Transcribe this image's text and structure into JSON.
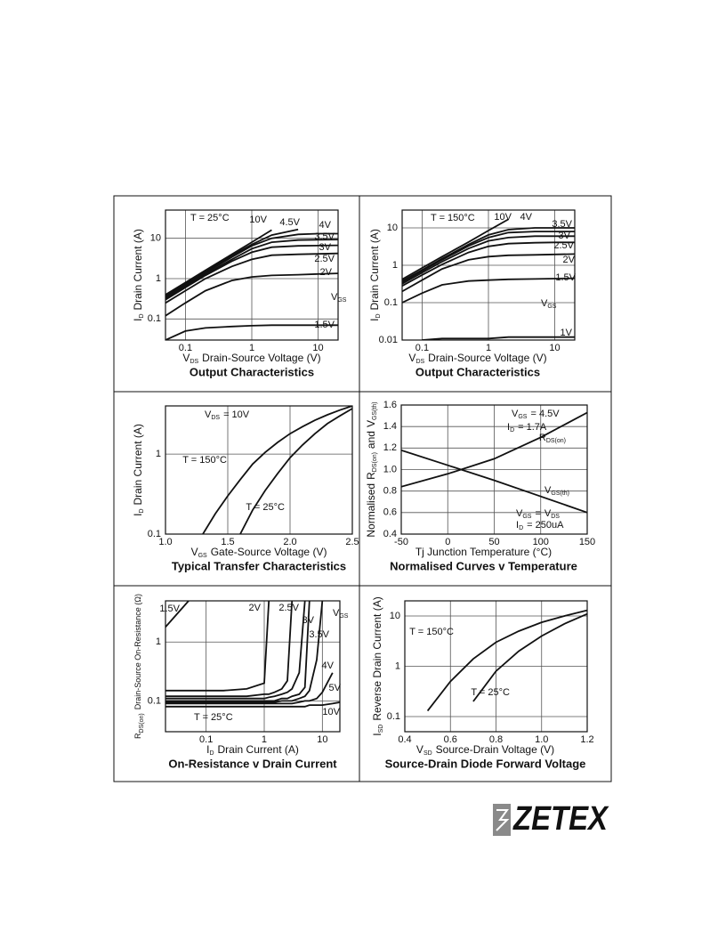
{
  "chart_data": [
    {
      "type": "line",
      "title": "Output Characteristics",
      "xlabel": {
        "symbol": "V",
        "subscript": "DS",
        "text": "Drain-Source Voltage (V)"
      },
      "ylabel": {
        "symbol": "I",
        "subscript": "D",
        "text": "Drain Current (A)"
      },
      "xscale": "log",
      "yscale": "log",
      "xlim": [
        0.05,
        20
      ],
      "ylim": [
        0.03,
        50
      ],
      "xticks": [
        0.1,
        1,
        10
      ],
      "yticks": [
        0.1,
        1,
        10
      ],
      "grid": true,
      "color": "#111111",
      "x": [
        0.05,
        0.1,
        0.2,
        0.5,
        1,
        2,
        5,
        10,
        20
      ],
      "annotations": [
        "T = 25°C",
        {
          "symbol": "V",
          "subscript": "GS"
        }
      ],
      "series": [
        {
          "name": "10V",
          "values": [
            0.4,
            0.8,
            1.6,
            4,
            8,
            16,
            null,
            null,
            null
          ]
        },
        {
          "name": "4.5V",
          "values": [
            0.38,
            0.75,
            1.5,
            3.7,
            7,
            12,
            16.5,
            null,
            null
          ]
        },
        {
          "name": "4V",
          "values": [
            0.35,
            0.7,
            1.4,
            3.4,
            6.5,
            10,
            12.5,
            13,
            13
          ]
        },
        {
          "name": "3.5V",
          "values": [
            0.32,
            0.65,
            1.3,
            3,
            5.5,
            8,
            9,
            9.2,
            9.3
          ]
        },
        {
          "name": "3V",
          "values": [
            0.3,
            0.6,
            1.2,
            2.7,
            4.5,
            6,
            6.5,
            6.6,
            6.7
          ]
        },
        {
          "name": "2.5V",
          "values": [
            0.25,
            0.5,
            1,
            2,
            3,
            3.8,
            4,
            4.1,
            4.2
          ]
        },
        {
          "name": "2V",
          "values": [
            0.12,
            0.25,
            0.5,
            0.9,
            1.1,
            1.2,
            1.25,
            1.3,
            1.35
          ]
        },
        {
          "name": "1.5V",
          "values": [
            0.03,
            0.05,
            0.06,
            0.065,
            0.068,
            0.07,
            0.07,
            0.07,
            0.07
          ]
        }
      ]
    },
    {
      "type": "line",
      "title": "Output Characteristics",
      "xlabel": {
        "symbol": "V",
        "subscript": "DS",
        "text": "Drain-Source Voltage (V)"
      },
      "ylabel": {
        "symbol": "I",
        "subscript": "D",
        "text": "Drain Current (A)"
      },
      "xscale": "log",
      "yscale": "log",
      "xlim": [
        0.05,
        20
      ],
      "ylim": [
        0.01,
        30
      ],
      "xticks": [
        0.1,
        1,
        10
      ],
      "yticks": [
        0.01,
        0.1,
        1,
        10
      ],
      "grid": true,
      "color": "#111111",
      "x": [
        0.05,
        0.1,
        0.2,
        0.5,
        1,
        2,
        5,
        10,
        20
      ],
      "annotations": [
        "T = 150°C",
        {
          "symbol": "V",
          "subscript": "GS"
        }
      ],
      "series": [
        {
          "name": "10V",
          "values": [
            0.42,
            0.85,
            1.7,
            4.2,
            8.5,
            17,
            null,
            null,
            null
          ]
        },
        {
          "name": "4V",
          "values": [
            0.38,
            0.75,
            1.5,
            3.6,
            6.5,
            9,
            10,
            10,
            10
          ]
        },
        {
          "name": "3.5V",
          "values": [
            0.35,
            0.7,
            1.4,
            3.3,
            5.5,
            7.5,
            8,
            8,
            8
          ]
        },
        {
          "name": "3V",
          "values": [
            0.32,
            0.63,
            1.25,
            2.8,
            4.5,
            5.5,
            6,
            6,
            6
          ]
        },
        {
          "name": "2.5V",
          "values": [
            0.28,
            0.55,
            1.05,
            2.2,
            3.2,
            3.8,
            4,
            4.1,
            4.1
          ]
        },
        {
          "name": "2V",
          "values": [
            0.2,
            0.4,
            0.8,
            1.4,
            1.7,
            1.85,
            1.9,
            1.95,
            2
          ]
        },
        {
          "name": "1.5V",
          "values": [
            0.1,
            0.18,
            0.3,
            0.38,
            0.4,
            0.42,
            0.43,
            0.44,
            0.45
          ]
        },
        {
          "name": "1V",
          "values": [
            null,
            0.01,
            0.011,
            0.011,
            0.011,
            0.012,
            0.012,
            0.012,
            0.012
          ]
        }
      ]
    },
    {
      "type": "line",
      "title": "Typical Transfer Characteristics",
      "xlabel": {
        "symbol": "V",
        "subscript": "GS",
        "text": "Gate-Source Voltage (V)"
      },
      "ylabel": {
        "symbol": "I",
        "subscript": "D",
        "text": "Drain Current (A)"
      },
      "xscale": "linear",
      "yscale": "log",
      "xlim": [
        1,
        2.5
      ],
      "ylim": [
        0.1,
        4
      ],
      "xticks": [
        {
          "value": 1,
          "label": "1.0"
        },
        1.5,
        {
          "value": 2,
          "label": "2.0"
        },
        2.5
      ],
      "yticks": [
        0.1,
        1
      ],
      "grid": true,
      "color": "#111111",
      "x": [
        1.3,
        1.4,
        1.5,
        1.6,
        1.7,
        1.8,
        1.9,
        2.0,
        2.1,
        2.2,
        2.3,
        2.4,
        2.5
      ],
      "annotations": [
        {
          "symbol": "V",
          "subscript": "DS",
          "text": "= 10V"
        }
      ],
      "series": [
        {
          "name": "T = 150°C",
          "values": [
            0.1,
            0.18,
            0.3,
            0.48,
            0.75,
            1.05,
            1.4,
            1.8,
            2.2,
            2.65,
            3.1,
            3.55,
            4
          ]
        },
        {
          "name": "T = 25°C",
          "values": [
            null,
            null,
            null,
            0.1,
            0.2,
            0.35,
            0.57,
            0.9,
            1.3,
            1.8,
            2.4,
            3,
            3.7
          ]
        }
      ]
    },
    {
      "type": "line",
      "title": "Normalised Curves v Temperature",
      "xlabel": "Tj  Junction Temperature (°C)",
      "ylabel": [
        "Normalised",
        {
          "symbol": "R",
          "subscript": "DS(on)",
          "text": "and"
        },
        {
          "symbol": "V",
          "subscript": "GS(th)"
        }
      ],
      "xscale": "linear",
      "yscale": "linear",
      "xlim": [
        -50,
        150
      ],
      "ylim": [
        0.4,
        1.6
      ],
      "xticks": [
        -50,
        0,
        50,
        100,
        150
      ],
      "yticks": [
        0.4,
        0.6,
        0.8,
        {
          "value": 1,
          "label": "1.0"
        },
        1.2,
        1.4,
        1.6
      ],
      "grid": true,
      "color": "#111111",
      "x": [
        -50,
        0,
        50,
        100,
        150
      ],
      "annotations": [
        {
          "symbol": "V",
          "subscript": "GS",
          "text": "= 4.5V"
        },
        {
          "symbol": "I",
          "subscript": "D",
          "text": "= 1.7A"
        },
        [
          {
            "symbol": "V",
            "subscript": "GS",
            "text": "="
          },
          {
            "symbol": "V",
            "subscript": "DS"
          }
        ],
        {
          "symbol": "I",
          "subscript": "D",
          "text": "= 250uA"
        }
      ],
      "series": [
        {
          "name": {
            "symbol": "R",
            "subscript": "DS(on)"
          },
          "values": [
            0.84,
            0.96,
            1.1,
            1.3,
            1.53
          ]
        },
        {
          "name": {
            "symbol": "V",
            "subscript": "GS(th)"
          },
          "values": [
            1.18,
            1.04,
            0.9,
            0.75,
            0.6
          ]
        }
      ]
    },
    {
      "type": "line",
      "title": "On-Resistance v Drain Current",
      "xlabel": {
        "symbol": "I",
        "subscript": "D",
        "text": "Drain Current (A)"
      },
      "ylabel": {
        "symbol": "R",
        "subscript": "DS(on)",
        "text": "Drain-Source On-Resistance (Ω)"
      },
      "xscale": "log",
      "yscale": "log",
      "xlim": [
        0.02,
        20
      ],
      "ylim": [
        0.03,
        5
      ],
      "xticks": [
        0.1,
        1,
        10
      ],
      "yticks": [
        0.1,
        1
      ],
      "grid": true,
      "color": "#111111",
      "x": [
        0.02,
        0.05,
        0.1,
        0.2,
        0.5,
        1,
        1.2,
        1.5,
        2,
        2.5,
        3,
        4,
        5,
        6,
        8,
        10,
        15,
        20
      ],
      "annotations": [
        "T = 25°C",
        {
          "symbol": "V",
          "subscript": "GS"
        }
      ],
      "series": [
        {
          "name": "1.5V",
          "values": [
            1.8,
            5,
            null,
            null,
            null,
            null,
            null,
            null,
            null,
            null,
            null,
            null,
            null,
            null,
            null,
            null,
            null,
            null
          ]
        },
        {
          "name": "2V",
          "values": [
            0.15,
            0.15,
            0.15,
            0.15,
            0.16,
            0.2,
            5,
            null,
            null,
            null,
            null,
            null,
            null,
            null,
            null,
            null,
            null,
            null
          ]
        },
        {
          "name": "2.5V",
          "values": [
            0.12,
            0.12,
            0.12,
            0.12,
            0.12,
            0.13,
            0.13,
            0.14,
            0.16,
            0.22,
            5,
            null,
            null,
            null,
            null,
            null,
            null,
            null
          ]
        },
        {
          "name": "3V",
          "values": [
            0.11,
            0.11,
            0.11,
            0.11,
            0.11,
            0.11,
            0.115,
            0.12,
            0.13,
            0.14,
            0.16,
            0.3,
            5,
            null,
            null,
            null,
            null,
            null
          ]
        },
        {
          "name": "3.5V",
          "values": [
            0.1,
            0.1,
            0.1,
            0.1,
            0.1,
            0.1,
            0.1,
            0.1,
            0.11,
            0.11,
            0.12,
            0.13,
            0.17,
            5,
            null,
            null,
            null,
            null
          ]
        },
        {
          "name": "4V",
          "values": [
            0.095,
            0.095,
            0.095,
            0.095,
            0.095,
            0.095,
            0.095,
            0.095,
            0.1,
            0.1,
            0.1,
            0.11,
            0.12,
            0.15,
            0.5,
            5,
            null,
            null
          ]
        },
        {
          "name": "5V",
          "values": [
            0.09,
            0.09,
            0.09,
            0.09,
            0.09,
            0.09,
            0.09,
            0.09,
            0.09,
            0.09,
            0.09,
            0.095,
            0.1,
            0.1,
            0.11,
            0.14,
            0.3,
            null
          ]
        },
        {
          "name": "10V",
          "values": [
            0.08,
            0.08,
            0.08,
            0.08,
            0.08,
            0.08,
            0.08,
            0.08,
            0.08,
            0.08,
            0.08,
            0.08,
            0.08,
            0.085,
            0.085,
            0.085,
            0.09,
            0.095
          ]
        }
      ]
    },
    {
      "type": "line",
      "title": "Source-Drain Diode Forward Voltage",
      "xlabel": {
        "symbol": "V",
        "subscript": "SD",
        "text": "Source-Drain Voltage (V)"
      },
      "ylabel": {
        "symbol": "I",
        "subscript": "SD",
        "text": "Reverse Drain Current (A)"
      },
      "xscale": "linear",
      "yscale": "log",
      "xlim": [
        0.4,
        1.2
      ],
      "ylim": [
        0.05,
        20
      ],
      "xticks": [
        0.4,
        0.6,
        0.8,
        {
          "value": 1,
          "label": "1.0"
        },
        1.2
      ],
      "yticks": [
        0.1,
        1,
        10
      ],
      "grid": true,
      "color": "#111111",
      "x": [
        0.4,
        0.5,
        0.6,
        0.7,
        0.8,
        0.9,
        1.0,
        1.1,
        1.2
      ],
      "annotations": [],
      "series": [
        {
          "name": "T = 150°C",
          "values": [
            null,
            0.13,
            0.5,
            1.4,
            3,
            5,
            7.5,
            10,
            13
          ]
        },
        {
          "name": "T = 25°C",
          "values": [
            null,
            null,
            null,
            0.2,
            0.8,
            2,
            4,
            7,
            11
          ]
        }
      ]
    }
  ],
  "logo": "ZETEX"
}
